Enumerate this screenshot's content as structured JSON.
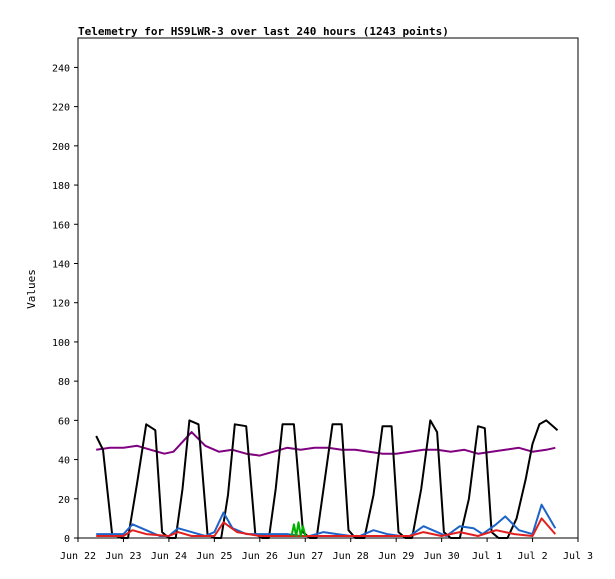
{
  "chart_data": {
    "type": "line",
    "title": "Telemetry for HS9LWR-3 over last 240 hours (1243 points)",
    "ylabel": "Values",
    "xlabel": "",
    "ylim": [
      0,
      255
    ],
    "yticks": [
      0,
      20,
      40,
      60,
      80,
      100,
      120,
      140,
      160,
      180,
      200,
      220,
      240
    ],
    "xlim": [
      0,
      11
    ],
    "xticks": [
      {
        "label": "Jun 22",
        "x": 0
      },
      {
        "label": "Jun 23",
        "x": 1
      },
      {
        "label": "Jun 24",
        "x": 2
      },
      {
        "label": "Jun 25",
        "x": 3
      },
      {
        "label": "Jun 26",
        "x": 4
      },
      {
        "label": "Jun 27",
        "x": 5
      },
      {
        "label": "Jun 28",
        "x": 6
      },
      {
        "label": "Jun 29",
        "x": 7
      },
      {
        "label": "Jun 30",
        "x": 8
      },
      {
        "label": "Jul 1",
        "x": 9
      },
      {
        "label": "Jul 2",
        "x": 10
      },
      {
        "label": "Jul 3",
        "x": 11
      }
    ],
    "grid": false,
    "legend": "none",
    "series": [
      {
        "color": "#800080",
        "x": [
          0.4,
          0.7,
          1.0,
          1.3,
          1.6,
          1.9,
          2.1,
          2.3,
          2.5,
          2.8,
          3.1,
          3.4,
          3.7,
          4.0,
          4.3,
          4.6,
          4.9,
          5.2,
          5.5,
          5.8,
          6.1,
          6.4,
          6.7,
          7.0,
          7.3,
          7.6,
          7.9,
          8.2,
          8.5,
          8.8,
          9.1,
          9.4,
          9.7,
          10.0,
          10.3,
          10.5
        ],
        "y": [
          45,
          46,
          46,
          47,
          45,
          43,
          44,
          49,
          54,
          47,
          44,
          45,
          43,
          42,
          44,
          46,
          45,
          46,
          46,
          45,
          45,
          44,
          43,
          43,
          44,
          45,
          45,
          44,
          45,
          43,
          44,
          45,
          46,
          44,
          45,
          46
        ]
      },
      {
        "color": "#000000",
        "x": [
          0.4,
          0.55,
          0.75,
          0.95,
          1.1,
          1.3,
          1.5,
          1.7,
          1.85,
          2.0,
          2.15,
          2.3,
          2.45,
          2.65,
          2.85,
          3.0,
          3.15,
          3.3,
          3.45,
          3.7,
          3.9,
          4.05,
          4.2,
          4.35,
          4.5,
          4.75,
          4.95,
          5.1,
          5.25,
          5.4,
          5.6,
          5.8,
          5.95,
          6.1,
          6.3,
          6.5,
          6.7,
          6.9,
          7.05,
          7.2,
          7.35,
          7.55,
          7.75,
          7.9,
          8.05,
          8.2,
          8.4,
          8.6,
          8.8,
          8.95,
          9.1,
          9.25,
          9.45,
          9.65,
          9.85,
          10.0,
          10.15,
          10.3,
          10.45,
          10.55
        ],
        "y": [
          52,
          45,
          2,
          0,
          0,
          28,
          58,
          55,
          3,
          0,
          0,
          25,
          60,
          58,
          2,
          0,
          0,
          22,
          58,
          57,
          2,
          0,
          0,
          25,
          58,
          58,
          3,
          0,
          0,
          25,
          58,
          58,
          4,
          0,
          0,
          22,
          57,
          57,
          3,
          0,
          0,
          25,
          60,
          54,
          3,
          0,
          0,
          20,
          57,
          56,
          3,
          0,
          0,
          10,
          30,
          48,
          58,
          60,
          57,
          55
        ]
      },
      {
        "color": "#1e64c8",
        "x": [
          0.4,
          0.7,
          1.0,
          1.2,
          1.5,
          1.8,
          2.0,
          2.2,
          2.5,
          2.8,
          3.0,
          3.2,
          3.4,
          3.7,
          4.0,
          4.3,
          4.6,
          4.9,
          5.1,
          5.4,
          5.7,
          6.0,
          6.2,
          6.5,
          6.8,
          7.1,
          7.3,
          7.6,
          7.9,
          8.1,
          8.4,
          8.7,
          8.9,
          9.2,
          9.4,
          9.7,
          10.0,
          10.2,
          10.5
        ],
        "y": [
          2,
          2,
          2,
          7,
          4,
          1,
          1,
          5,
          3,
          1,
          3,
          13,
          5,
          2,
          2,
          2,
          2,
          1,
          1,
          3,
          2,
          1,
          1,
          4,
          2,
          1,
          1,
          6,
          3,
          1,
          6,
          5,
          2,
          7,
          11,
          4,
          2,
          17,
          5
        ]
      },
      {
        "color": "#e02020",
        "x": [
          0.4,
          1.0,
          1.2,
          1.5,
          2.0,
          2.2,
          2.5,
          3.0,
          3.2,
          3.5,
          4.0,
          4.5,
          5.0,
          5.5,
          6.0,
          6.5,
          7.0,
          7.3,
          7.6,
          8.0,
          8.4,
          8.8,
          9.2,
          9.6,
          10.0,
          10.2,
          10.5
        ],
        "y": [
          1,
          1,
          4,
          2,
          1,
          3,
          1,
          1,
          8,
          3,
          1,
          1,
          1,
          1,
          1,
          1,
          1,
          1,
          3,
          1,
          3,
          1,
          4,
          2,
          1,
          10,
          2
        ]
      },
      {
        "color": "#00b000",
        "x": [
          4.7,
          4.75,
          4.8,
          4.85,
          4.9,
          4.95,
          5.0
        ],
        "y": [
          1,
          7,
          1,
          8,
          1,
          6,
          1
        ]
      }
    ]
  }
}
